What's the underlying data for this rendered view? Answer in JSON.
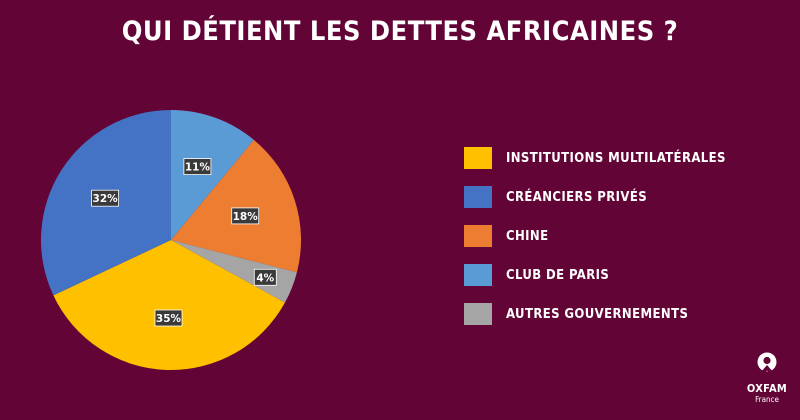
{
  "chart_data": {
    "type": "pie",
    "title": "QUI DÉTIENT LES DETTES AFRICAINES ?",
    "slices": [
      {
        "label": "CLUB DE PARIS",
        "value": 11,
        "value_label": "11%",
        "color": "#5b9bd5"
      },
      {
        "label": "CHINE",
        "value": 18,
        "value_label": "18%",
        "color": "#ed7d31"
      },
      {
        "label": "AUTRES GOUVERNEMENTS",
        "value": 4,
        "value_label": "4%",
        "color": "#a5a5a5"
      },
      {
        "label": "INSTITUTIONS MULTILATÉRALES",
        "value": 35,
        "value_label": "35%",
        "color": "#ffc000"
      },
      {
        "label": "CRÉANCIERS PRIVÉS",
        "value": 32,
        "value_label": "32%",
        "color": "#4472c4"
      }
    ],
    "legend": {
      "placement": "right",
      "order": [
        "INSTITUTIONS MULTILATÉRALES",
        "CRÉANCIERS PRIVÉS",
        "CHINE",
        "CLUB DE PARIS",
        "AUTRES GOUVERNEMENTS"
      ]
    }
  },
  "logo": {
    "name": "OXFAM",
    "subtitle": "France",
    "icon": "oxfam-logo-icon"
  }
}
